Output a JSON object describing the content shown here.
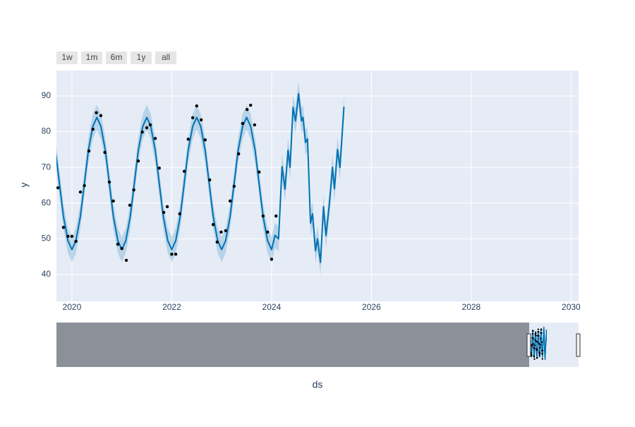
{
  "chart_data": {
    "type": "line",
    "range_buttons": [
      "1w",
      "1m",
      "6m",
      "1y",
      "all"
    ],
    "x_label": "ds",
    "y_label": "y",
    "xlim": [
      2019.69,
      2030.15
    ],
    "ylim": [
      32.5,
      97.1
    ],
    "xticks": [
      2020,
      2022,
      2024,
      2026,
      2028,
      2030
    ],
    "yticks": [
      40,
      50,
      60,
      70,
      80,
      90
    ],
    "grid": true,
    "background": "#e5ecf6",
    "x": [
      2019.67,
      2019.75,
      2019.83,
      2019.92,
      2020.0,
      2020.08,
      2020.17,
      2020.25,
      2020.33,
      2020.42,
      2020.5,
      2020.58,
      2020.67,
      2020.75,
      2020.83,
      2020.92,
      2021.0,
      2021.08,
      2021.17,
      2021.25,
      2021.33,
      2021.42,
      2021.5,
      2021.58,
      2021.67,
      2021.75,
      2021.83,
      2021.92,
      2022.0,
      2022.08,
      2022.17,
      2022.25,
      2022.33,
      2022.42,
      2022.5,
      2022.58,
      2022.67,
      2022.75,
      2022.83,
      2022.92,
      2023.0,
      2023.08,
      2023.17,
      2023.25,
      2023.33,
      2023.42,
      2023.5,
      2023.58,
      2023.67,
      2023.75,
      2023.83,
      2023.92,
      2024.0,
      2024.07,
      2024.14,
      2024.21,
      2024.27,
      2024.33,
      2024.37,
      2024.43,
      2024.48,
      2024.54,
      2024.6,
      2024.63,
      2024.68,
      2024.72,
      2024.78,
      2024.82,
      2024.88,
      2024.92,
      2024.98,
      2025.04,
      2025.09,
      2025.16,
      2025.22,
      2025.26,
      2025.32,
      2025.37,
      2025.45
    ],
    "series": [
      {
        "color": "#0072B2",
        "values": [
          74.8,
          65.5,
          56.3,
          49.5,
          47,
          49.5,
          56.3,
          65.5,
          74.8,
          81.5,
          84,
          81.5,
          74.8,
          65.5,
          56.3,
          49.5,
          47,
          49.5,
          56.3,
          65.5,
          74.8,
          81.5,
          84,
          81.5,
          74.8,
          65.5,
          56.3,
          49.5,
          47,
          49.5,
          56.3,
          65.5,
          74.8,
          81.5,
          84,
          81.5,
          74.8,
          65.5,
          56.3,
          49.5,
          47,
          49.5,
          56.3,
          65.5,
          74.8,
          81.5,
          84,
          81.5,
          74.8,
          65.5,
          56.3,
          49.5,
          47,
          51,
          50,
          70.2,
          63.9,
          74.8,
          70,
          86.8,
          83,
          90.6,
          83,
          84,
          77,
          78,
          54.4,
          57,
          46.7,
          50,
          43.4,
          59,
          50.9,
          60,
          70,
          64,
          75,
          70,
          87
        ]
      }
    ],
    "band": {
      "color": "rgba(0,114,178,0.2)",
      "upper": [
        78.3,
        69,
        59.8,
        53,
        50.5,
        53,
        59.8,
        69,
        78.3,
        85,
        87.5,
        85,
        78.3,
        69,
        59.8,
        53,
        50.5,
        53,
        59.8,
        69,
        78.3,
        85,
        87.5,
        85,
        78.3,
        69,
        59.8,
        53,
        50.5,
        53,
        59.8,
        69,
        78.3,
        85,
        87.5,
        85,
        78.3,
        69,
        59.8,
        53,
        50.5,
        53,
        59.8,
        69,
        78.3,
        85,
        87.5,
        85,
        78.3,
        69,
        59.8,
        53,
        50.5,
        54.5,
        53.5,
        73.7,
        67.4,
        78.3,
        73.5,
        90.3,
        86.5,
        94.1,
        86.5,
        87.5,
        80.5,
        81.5,
        57.9,
        60.5,
        50.2,
        53.5,
        46.9,
        62.5,
        54.4,
        63.5,
        73.5,
        67.5,
        78.5,
        73.5,
        90.5
      ],
      "lower": [
        71.3,
        62,
        52.8,
        46,
        43.5,
        46,
        52.8,
        62,
        71.3,
        78,
        80.5,
        78,
        71.3,
        62,
        52.8,
        46,
        43.5,
        46,
        52.8,
        62,
        71.3,
        78,
        80.5,
        78,
        71.3,
        62,
        52.8,
        46,
        43.5,
        46,
        52.8,
        62,
        71.3,
        78,
        80.5,
        78,
        71.3,
        62,
        52.8,
        46,
        43.5,
        46,
        52.8,
        62,
        71.3,
        78,
        80.5,
        78,
        71.3,
        62,
        52.8,
        46,
        43.5,
        47.5,
        46.5,
        66.7,
        60.4,
        71.3,
        66.5,
        83.3,
        79.5,
        87.1,
        79.5,
        80.5,
        73.5,
        74.5,
        50.9,
        53.5,
        43.2,
        46.5,
        39.9,
        55.5,
        47.4,
        56.5,
        66.5,
        60.5,
        71.5,
        66.5,
        83.5
      ]
    },
    "points": {
      "color": "#000000",
      "x": [
        2019.72,
        2019.83,
        2019.92,
        2020.0,
        2020.08,
        2020.17,
        2020.25,
        2020.34,
        2020.42,
        2020.49,
        2020.58,
        2020.66,
        2020.75,
        2020.83,
        2020.92,
        2021.0,
        2021.09,
        2021.16,
        2021.24,
        2021.33,
        2021.41,
        2021.5,
        2021.57,
        2021.67,
        2021.75,
        2021.84,
        2021.91,
        2022.0,
        2022.08,
        2022.16,
        2022.25,
        2022.33,
        2022.42,
        2022.5,
        2022.59,
        2022.67,
        2022.76,
        2022.83,
        2022.91,
        2022.99,
        2023.08,
        2023.17,
        2023.25,
        2023.34,
        2023.42,
        2023.51,
        2023.58,
        2023.66,
        2023.75,
        2023.83,
        2023.92,
        2024.0,
        2024.09
      ],
      "values": [
        64.3,
        53.2,
        50.7,
        50.7,
        49.3,
        63.1,
        64.9,
        74.6,
        80.7,
        85.3,
        84.5,
        74.2,
        65.9,
        60.6,
        48.5,
        47.3,
        44,
        59.4,
        63.7,
        71.8,
        79.9,
        81.1,
        81.9,
        78.1,
        69.8,
        57.4,
        59,
        45.7,
        45.7,
        57,
        68.9,
        77.9,
        83.9,
        87.2,
        83.3,
        77.7,
        66.5,
        54,
        49.1,
        51.9,
        52.3,
        60.6,
        64.7,
        73.8,
        82.3,
        86.2,
        87.4,
        81.9,
        68.7,
        56.4,
        51.9,
        44.3,
        56.4
      ]
    }
  }
}
